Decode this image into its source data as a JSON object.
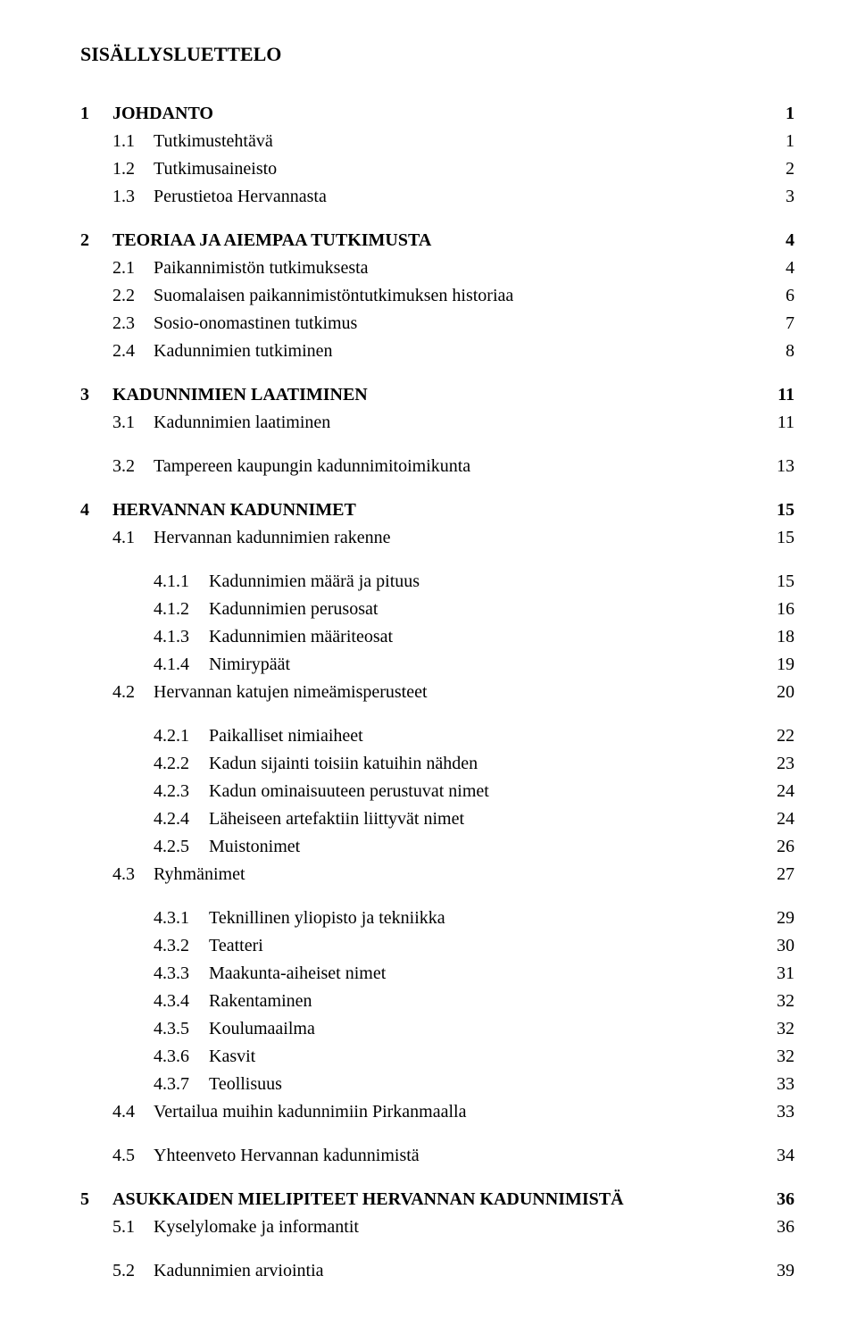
{
  "title": "SISÄLLYSLUETTELO",
  "toc_entries": [
    {
      "level": 0,
      "num": "1",
      "text": "JOHDANTO",
      "page": "1",
      "gap_before": false
    },
    {
      "level": 1,
      "num": "1.1",
      "text": "Tutkimustehtävä",
      "page": "1",
      "gap_before": false
    },
    {
      "level": 1,
      "num": "1.2",
      "text": "Tutkimusaineisto",
      "page": "2",
      "gap_before": false
    },
    {
      "level": 1,
      "num": "1.3",
      "text": "Perustietoa Hervannasta",
      "page": "3",
      "gap_before": false
    },
    {
      "level": 0,
      "num": "2",
      "text": "TEORIAA JA AIEMPAA TUTKIMUSTA",
      "page": "4",
      "gap_before": false
    },
    {
      "level": 1,
      "num": "2.1",
      "text": "Paikannimistön tutkimuksesta",
      "page": "4",
      "gap_before": false
    },
    {
      "level": 1,
      "num": "2.2",
      "text": "Suomalaisen paikannimistöntutkimuksen historiaa",
      "page": "6",
      "gap_before": false
    },
    {
      "level": 1,
      "num": "2.3",
      "text": "Sosio-onomastinen tutkimus",
      "page": "7",
      "gap_before": false
    },
    {
      "level": 1,
      "num": "2.4",
      "text": "Kadunnimien tutkiminen",
      "page": "8",
      "gap_before": false
    },
    {
      "level": 0,
      "num": "3",
      "text": "KADUNNIMIEN LAATIMINEN",
      "page": "11",
      "gap_before": false
    },
    {
      "level": 1,
      "num": "3.1",
      "text": "Kadunnimien laatiminen",
      "page": "11",
      "gap_before": false
    },
    {
      "level": 1,
      "num": "3.2",
      "text": "Tampereen kaupungin kadunnimitoimikunta",
      "page": "13",
      "gap_before": true
    },
    {
      "level": 0,
      "num": "4",
      "text": "HERVANNAN KADUNNIMET",
      "page": "15",
      "gap_before": false
    },
    {
      "level": 1,
      "num": "4.1",
      "text": "Hervannan kadunnimien rakenne",
      "page": "15",
      "gap_before": false
    },
    {
      "level": 2,
      "num": "4.1.1",
      "text": "Kadunnimien määrä ja pituus",
      "page": "15",
      "gap_before": true
    },
    {
      "level": 2,
      "num": "4.1.2",
      "text": "Kadunnimien perusosat",
      "page": "16",
      "gap_before": false
    },
    {
      "level": 2,
      "num": "4.1.3",
      "text": "Kadunnimien määriteosat",
      "page": "18",
      "gap_before": false
    },
    {
      "level": 2,
      "num": "4.1.4",
      "text": "Nimirypäät",
      "page": "19",
      "gap_before": false
    },
    {
      "level": 1,
      "num": "4.2",
      "text": "Hervannan katujen nimeämisperusteet",
      "page": "20",
      "gap_before": false
    },
    {
      "level": 2,
      "num": "4.2.1",
      "text": "Paikalliset nimiaiheet",
      "page": "22",
      "gap_before": true
    },
    {
      "level": 2,
      "num": "4.2.2",
      "text": "Kadun sijainti toisiin katuihin nähden",
      "page": "23",
      "gap_before": false
    },
    {
      "level": 2,
      "num": "4.2.3",
      "text": "Kadun ominaisuuteen perustuvat nimet",
      "page": "24",
      "gap_before": false
    },
    {
      "level": 2,
      "num": "4.2.4",
      "text": "Läheiseen artefaktiin liittyvät nimet",
      "page": "24",
      "gap_before": false
    },
    {
      "level": 2,
      "num": "4.2.5",
      "text": "Muistonimet",
      "page": "26",
      "gap_before": false
    },
    {
      "level": 1,
      "num": "4.3",
      "text": "Ryhmänimet",
      "page": "27",
      "gap_before": false
    },
    {
      "level": 2,
      "num": "4.3.1",
      "text": "Teknillinen yliopisto ja tekniikka",
      "page": "29",
      "gap_before": true
    },
    {
      "level": 2,
      "num": "4.3.2",
      "text": "Teatteri",
      "page": "30",
      "gap_before": false
    },
    {
      "level": 2,
      "num": "4.3.3",
      "text": "Maakunta-aiheiset nimet",
      "page": "31",
      "gap_before": false
    },
    {
      "level": 2,
      "num": "4.3.4",
      "text": "Rakentaminen",
      "page": "32",
      "gap_before": false
    },
    {
      "level": 2,
      "num": "4.3.5",
      "text": "Koulumaailma",
      "page": "32",
      "gap_before": false
    },
    {
      "level": 2,
      "num": "4.3.6",
      "text": "Kasvit",
      "page": "32",
      "gap_before": false
    },
    {
      "level": 2,
      "num": "4.3.7",
      "text": "Teollisuus",
      "page": "33",
      "gap_before": false
    },
    {
      "level": 1,
      "num": "4.4",
      "text": "Vertailua muihin kadunnimiin Pirkanmaalla",
      "page": "33",
      "gap_before": false
    },
    {
      "level": 1,
      "num": "4.5",
      "text": "Yhteenveto Hervannan kadunnimistä",
      "page": "34",
      "gap_before": true
    },
    {
      "level": 0,
      "num": "5",
      "text": "ASUKKAIDEN MIELIPITEET HERVANNAN KADUNNIMISTÄ",
      "page": "36",
      "gap_before": false
    },
    {
      "level": 1,
      "num": "5.1",
      "text": "Kyselylomake ja informantit",
      "page": "36",
      "gap_before": false
    },
    {
      "level": 1,
      "num": "5.2",
      "text": "Kadunnimien arviointia",
      "page": "39",
      "gap_before": true
    }
  ]
}
